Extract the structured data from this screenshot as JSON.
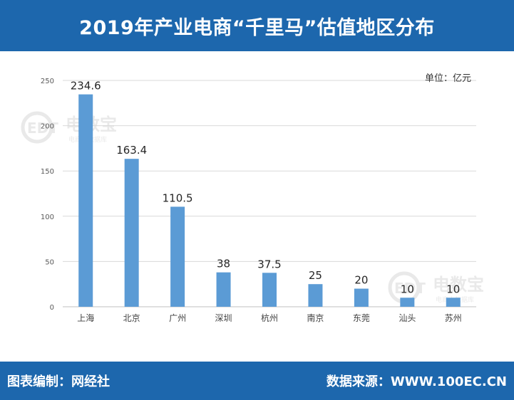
{
  "header": {
    "title": "2019年产业电商“千里马”估值地区分布"
  },
  "footer": {
    "left": "图表编制：网经社",
    "right": "数据来源：WWW.100EC.CN"
  },
  "watermark": {
    "brand": "电数宝",
    "logo_text": "EDT",
    "tagline": "电商大数据库"
  },
  "colors": {
    "bar": "#5b9bd5",
    "band": "#1d67ad",
    "grid": "#d9d9d9"
  },
  "chart_data": {
    "type": "bar",
    "unit_label": "单位：亿元",
    "categories": [
      "上海",
      "北京",
      "广州",
      "深圳",
      "杭州",
      "南京",
      "东莞",
      "汕头",
      "苏州"
    ],
    "values": [
      234.6,
      163.4,
      110.5,
      38,
      37.5,
      25,
      20,
      10,
      10
    ],
    "value_labels": [
      "234.6",
      "163.4",
      "110.5",
      "38",
      "37.5",
      "25",
      "20",
      "10",
      "10"
    ],
    "ylim": [
      0,
      250
    ],
    "yticks": [
      0,
      50,
      100,
      150,
      200,
      250
    ],
    "grid": true
  }
}
